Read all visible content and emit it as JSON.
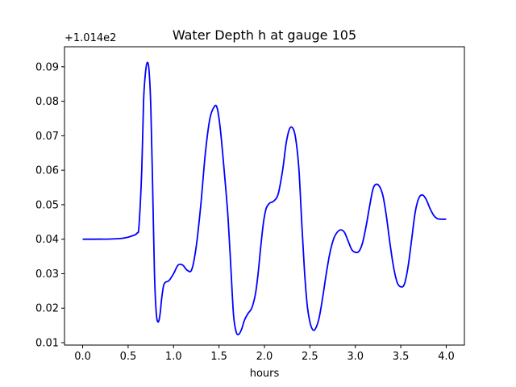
{
  "chart_data": {
    "type": "line",
    "title": "Water Depth h at gauge 105",
    "xlabel": "hours",
    "ylabel": "",
    "y_offset_label": "+1.014e2",
    "xlim": [
      -0.2,
      4.2
    ],
    "ylim": [
      0.0093,
      0.0958
    ],
    "x_ticks": [
      0.0,
      0.5,
      1.0,
      1.5,
      2.0,
      2.5,
      3.0,
      3.5,
      4.0
    ],
    "x_tick_labels": [
      "0.0",
      "0.5",
      "1.0",
      "1.5",
      "2.0",
      "2.5",
      "3.0",
      "3.5",
      "4.0"
    ],
    "y_ticks": [
      0.01,
      0.02,
      0.03,
      0.04,
      0.05,
      0.06,
      0.07,
      0.08,
      0.09
    ],
    "y_tick_labels": [
      "0.01",
      "0.02",
      "0.03",
      "0.04",
      "0.05",
      "0.06",
      "0.07",
      "0.08",
      "0.09"
    ],
    "grid": false,
    "series": [
      {
        "color": "#0000ff",
        "x": [
          0.0,
          0.3,
          0.45,
          0.55,
          0.6,
          0.62,
          0.65,
          0.67,
          0.69,
          0.71,
          0.73,
          0.75,
          0.77,
          0.79,
          0.81,
          0.83,
          0.85,
          0.87,
          0.89,
          0.91,
          0.95,
          1.0,
          1.05,
          1.1,
          1.15,
          1.2,
          1.25,
          1.3,
          1.35,
          1.4,
          1.45,
          1.48,
          1.51,
          1.54,
          1.57,
          1.6,
          1.63,
          1.66,
          1.69,
          1.72,
          1.75,
          1.78,
          1.82,
          1.86,
          1.9,
          1.93,
          1.96,
          1.99,
          2.02,
          2.06,
          2.1,
          2.15,
          2.2,
          2.24,
          2.28,
          2.32,
          2.35,
          2.38,
          2.41,
          2.44,
          2.47,
          2.5,
          2.53,
          2.56,
          2.6,
          2.64,
          2.68,
          2.72,
          2.76,
          2.8,
          2.84,
          2.88,
          2.92,
          2.96,
          3.0,
          3.04,
          3.08,
          3.12,
          3.16,
          3.2,
          3.25,
          3.3,
          3.34,
          3.38,
          3.42,
          3.46,
          3.5,
          3.54,
          3.58,
          3.62,
          3.66,
          3.7,
          3.74,
          3.78,
          3.82,
          3.86,
          3.9,
          3.95,
          4.0
        ],
        "y": [
          0.04,
          0.04005,
          0.0403,
          0.041,
          0.0418,
          0.044,
          0.06,
          0.08,
          0.088,
          0.0912,
          0.089,
          0.078,
          0.055,
          0.03,
          0.0185,
          0.016,
          0.018,
          0.023,
          0.0265,
          0.0275,
          0.028,
          0.03,
          0.0325,
          0.0325,
          0.031,
          0.0312,
          0.038,
          0.05,
          0.065,
          0.075,
          0.0785,
          0.078,
          0.073,
          0.065,
          0.056,
          0.046,
          0.032,
          0.018,
          0.013,
          0.0125,
          0.014,
          0.0165,
          0.0185,
          0.02,
          0.024,
          0.03,
          0.038,
          0.045,
          0.049,
          0.0505,
          0.051,
          0.053,
          0.06,
          0.068,
          0.0722,
          0.0718,
          0.068,
          0.06,
          0.045,
          0.031,
          0.021,
          0.016,
          0.0138,
          0.014,
          0.017,
          0.023,
          0.03,
          0.036,
          0.04,
          0.042,
          0.0427,
          0.042,
          0.0395,
          0.037,
          0.0362,
          0.0365,
          0.039,
          0.044,
          0.05,
          0.055,
          0.0558,
          0.053,
          0.047,
          0.039,
          0.032,
          0.0275,
          0.0262,
          0.027,
          0.032,
          0.04,
          0.048,
          0.052,
          0.0528,
          0.0515,
          0.049,
          0.047,
          0.046,
          0.0458,
          0.0458
        ]
      }
    ]
  }
}
